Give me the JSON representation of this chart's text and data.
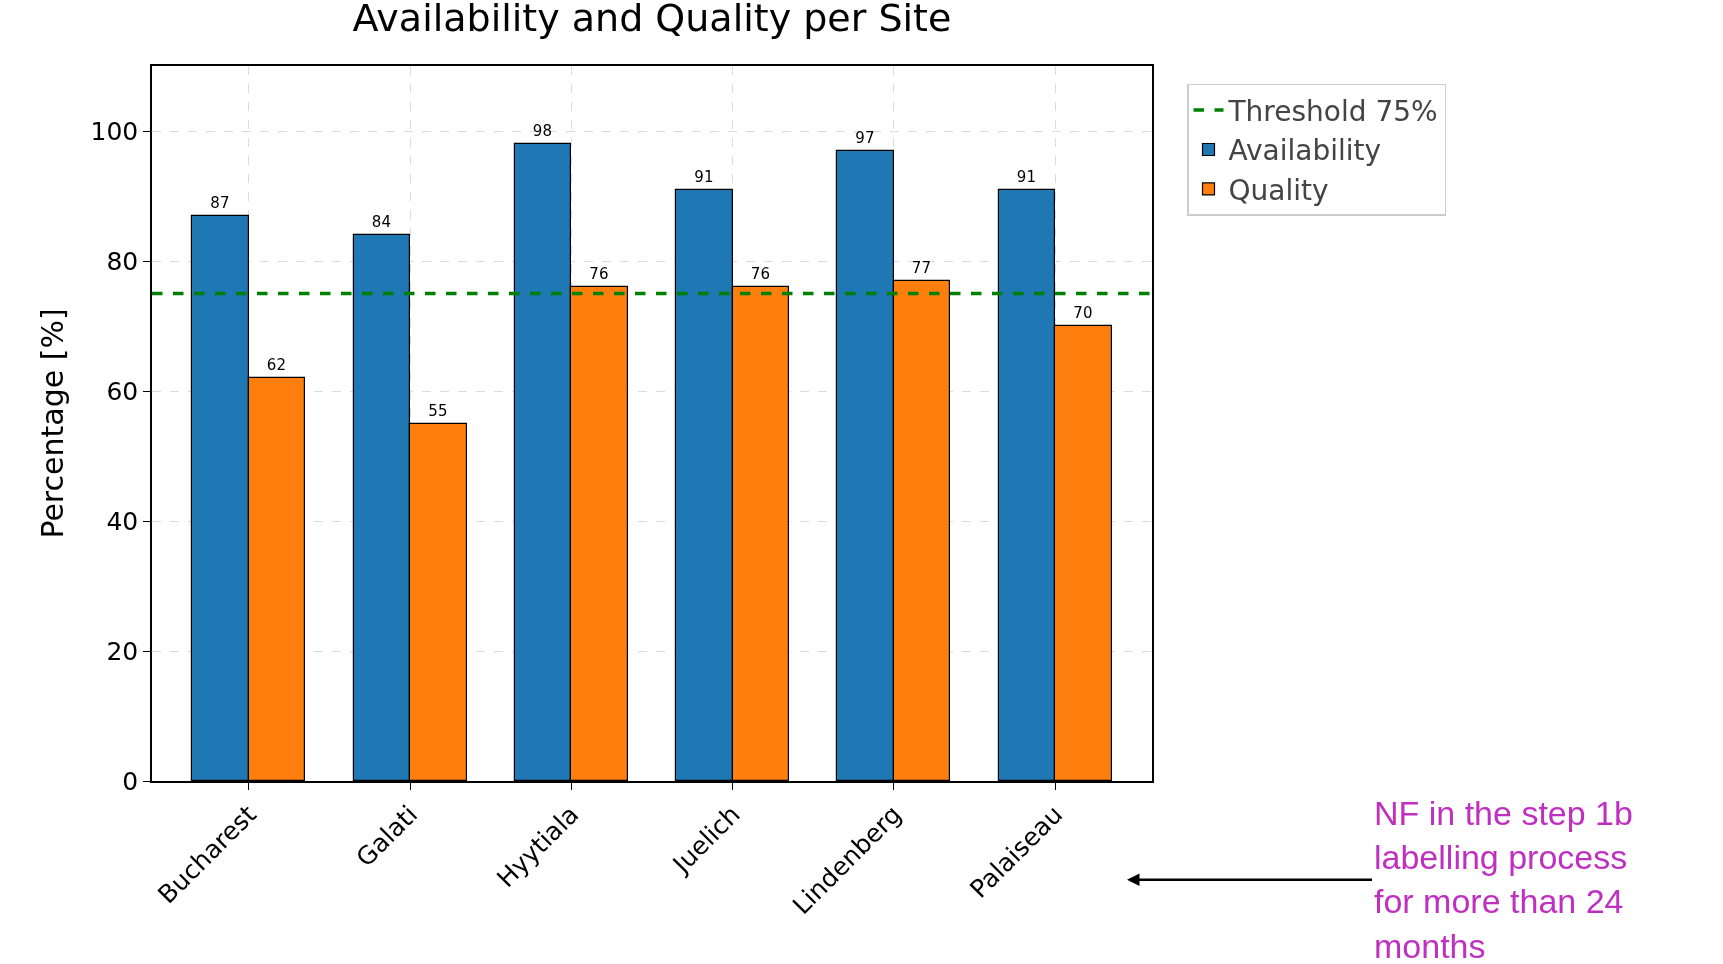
{
  "chart_data": {
    "type": "bar",
    "title": "Availability and Quality per Site",
    "ylabel": "Percentage [%]",
    "categories": [
      "Bucharest",
      "Galati",
      "Hyytiala",
      "Juelich",
      "Lindenberg",
      "Palaiseau"
    ],
    "series": [
      {
        "name": "Availability",
        "color": "#1f77b4",
        "values": [
          87,
          84,
          98,
          91,
          97,
          91
        ]
      },
      {
        "name": "Quality",
        "color": "#ff7f0e",
        "values": [
          62,
          55,
          76,
          76,
          77,
          70
        ]
      }
    ],
    "ylim": [
      0,
      110
    ],
    "yticks": [
      0,
      20,
      40,
      60,
      80,
      100
    ],
    "ref_lines": [
      {
        "axis": "y",
        "value": 75,
        "label": "Threshold 75%",
        "color": "#008000",
        "line_style": "dashed"
      }
    ],
    "data_labels": true,
    "grid": true,
    "legend": "top right",
    "annotations": [
      "NF in the step 1b labelling process for more than 24 months"
    ]
  }
}
